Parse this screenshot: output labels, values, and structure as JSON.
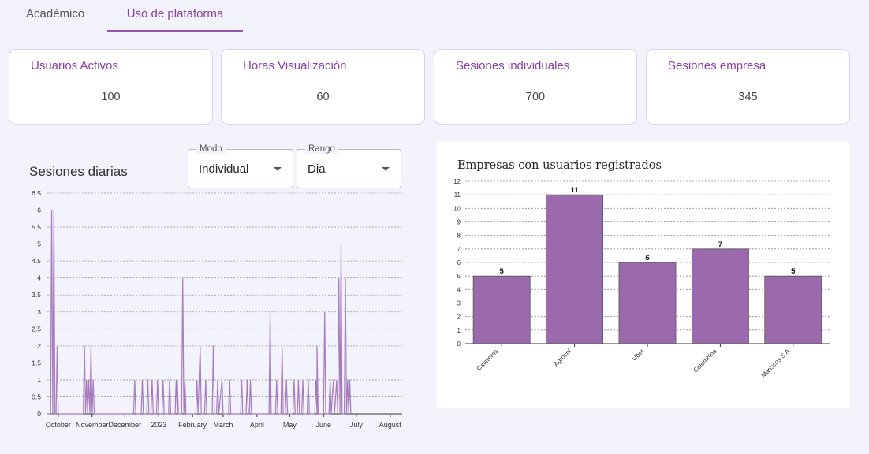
{
  "tabs": [
    {
      "label": "Académico",
      "active": false
    },
    {
      "label": "Uso de plataforma",
      "active": true
    }
  ],
  "cards": [
    {
      "title": "Usuarios Activos",
      "value": "100"
    },
    {
      "title": "Horas Visualización",
      "value": "60"
    },
    {
      "title": "Sesiones individuales",
      "value": "700"
    },
    {
      "title": "Sesiones empresa",
      "value": "345"
    }
  ],
  "filters": {
    "modo": {
      "label": "Modo",
      "value": "Individual"
    },
    "rango": {
      "label": "Rango",
      "value": "Dia"
    }
  },
  "colors": {
    "accent": "#8a3fa3",
    "bar": "#9a6aad",
    "line": "#a67bbd"
  },
  "chart_data": [
    {
      "type": "line",
      "title": "Sesiones diarias",
      "xlabel": "",
      "ylabel": "",
      "ylim": [
        0,
        6.5
      ],
      "yticks": [
        0,
        0.5,
        1,
        1.5,
        2,
        2.5,
        3,
        3.5,
        4,
        4.5,
        5,
        5.5,
        6,
        6.5
      ],
      "x_tick_labels": [
        "October",
        "November",
        "December",
        "2023",
        "February",
        "March",
        "April",
        "May",
        "June",
        "July",
        "August"
      ],
      "x_tick_days": [
        10,
        41,
        71,
        102,
        133,
        161,
        192,
        222,
        253,
        283,
        314
      ],
      "x_range_days": [
        0,
        325
      ],
      "series": [
        {
          "name": "Sesiones",
          "points": [
            [
              0,
              0
            ],
            [
              3,
              0
            ],
            [
              4,
              6
            ],
            [
              5,
              0
            ],
            [
              6,
              6
            ],
            [
              7,
              0
            ],
            [
              8,
              0
            ],
            [
              9,
              2
            ],
            [
              10,
              0
            ],
            [
              33,
              0
            ],
            [
              34,
              2
            ],
            [
              35,
              0
            ],
            [
              36,
              1
            ],
            [
              37,
              0
            ],
            [
              38,
              1
            ],
            [
              39,
              0
            ],
            [
              40,
              2
            ],
            [
              41,
              0
            ],
            [
              42,
              1
            ],
            [
              43,
              0
            ],
            [
              79,
              0
            ],
            [
              80,
              1
            ],
            [
              81,
              0
            ],
            [
              86,
              0
            ],
            [
              87,
              1
            ],
            [
              88,
              0
            ],
            [
              91,
              0
            ],
            [
              92,
              1
            ],
            [
              93,
              0
            ],
            [
              95,
              0
            ],
            [
              96,
              1
            ],
            [
              97,
              0
            ],
            [
              100,
              0
            ],
            [
              101,
              1
            ],
            [
              102,
              0
            ],
            [
              105,
              0
            ],
            [
              106,
              1
            ],
            [
              107,
              0
            ],
            [
              111,
              0
            ],
            [
              112,
              1
            ],
            [
              113,
              0
            ],
            [
              117,
              0
            ],
            [
              118,
              1
            ],
            [
              119,
              0
            ],
            [
              119,
              1
            ],
            [
              120,
              0
            ],
            [
              123,
              0
            ],
            [
              124,
              4
            ],
            [
              125,
              0
            ],
            [
              126,
              1
            ],
            [
              127,
              0
            ],
            [
              136,
              0
            ],
            [
              137,
              1
            ],
            [
              138,
              0
            ],
            [
              140,
              2
            ],
            [
              141,
              0
            ],
            [
              144,
              0
            ],
            [
              145,
              1
            ],
            [
              146,
              0
            ],
            [
              151,
              0
            ],
            [
              152,
              2
            ],
            [
              153,
              0
            ],
            [
              155,
              0
            ],
            [
              156,
              1
            ],
            [
              157,
              0
            ],
            [
              160,
              1
            ],
            [
              161,
              0
            ],
            [
              166,
              0
            ],
            [
              167,
              1
            ],
            [
              168,
              0
            ],
            [
              177,
              0
            ],
            [
              178,
              1
            ],
            [
              179,
              0
            ],
            [
              182,
              0
            ],
            [
              183,
              1
            ],
            [
              184,
              0
            ],
            [
              185,
              0
            ],
            [
              186,
              1
            ],
            [
              187,
              0
            ],
            [
              203,
              0
            ],
            [
              204,
              3
            ],
            [
              205,
              0
            ],
            [
              209,
              0
            ],
            [
              210,
              1
            ],
            [
              211,
              0
            ],
            [
              214,
              0
            ],
            [
              215,
              2
            ],
            [
              216,
              0
            ],
            [
              218,
              0
            ],
            [
              219,
              1
            ],
            [
              220,
              0
            ],
            [
              225,
              0
            ],
            [
              226,
              1
            ],
            [
              227,
              0
            ],
            [
              229,
              0
            ],
            [
              230,
              1
            ],
            [
              231,
              0
            ],
            [
              233,
              0
            ],
            [
              234,
              1
            ],
            [
              235,
              0
            ],
            [
              238,
              0
            ],
            [
              239,
              1
            ],
            [
              240,
              0
            ],
            [
              245,
              0
            ],
            [
              246,
              1
            ],
            [
              247,
              0
            ],
            [
              247,
              2
            ],
            [
              248,
              0
            ],
            [
              253,
              0
            ],
            [
              254,
              3
            ],
            [
              255,
              0
            ],
            [
              258,
              0
            ],
            [
              259,
              1
            ],
            [
              260,
              0
            ],
            [
              262,
              1
            ],
            [
              263,
              0
            ],
            [
              265,
              1
            ],
            [
              266,
              0
            ],
            [
              267,
              4
            ],
            [
              268,
              0
            ],
            [
              269,
              5
            ],
            [
              270,
              0
            ],
            [
              272,
              0
            ],
            [
              273,
              4
            ],
            [
              274,
              0
            ],
            [
              275,
              1
            ],
            [
              276,
              0
            ],
            [
              277,
              1
            ],
            [
              278,
              0
            ]
          ]
        }
      ]
    },
    {
      "type": "bar",
      "title": "Empresas con usuarios registrados",
      "categories": [
        "Cafeteros",
        "Agrocol",
        "Uber",
        "Colombina",
        "Mariscos S.A"
      ],
      "values": [
        5,
        11,
        6,
        7,
        5
      ],
      "ylim": [
        0,
        12
      ],
      "yticks": [
        0,
        1,
        2,
        3,
        4,
        5,
        6,
        7,
        8,
        9,
        10,
        11,
        12
      ],
      "data_labels": [
        "5",
        "11",
        "6",
        "7",
        "5"
      ],
      "xlabel": "",
      "ylabel": ""
    }
  ]
}
